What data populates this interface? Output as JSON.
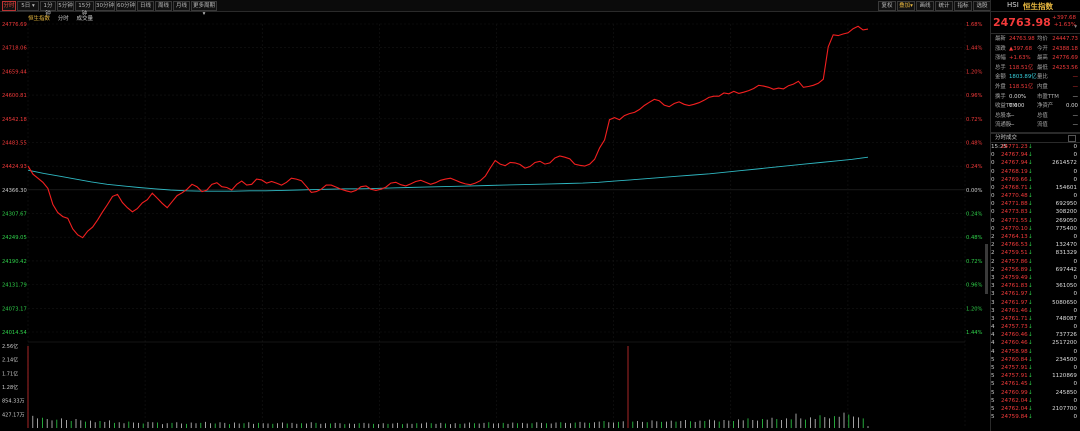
{
  "toolbar": {
    "tabs": [
      "分时",
      "5日",
      "1分钟",
      "5分钟",
      "15分钟",
      "30分钟",
      "60分钟",
      "日线",
      "周线",
      "月线",
      "更多周期"
    ],
    "active_index": 0,
    "dropdown_caret": "▾",
    "right_buttons": [
      "复权",
      "叠加",
      "画线",
      "统计",
      "指标",
      "选股"
    ]
  },
  "chart_head": {
    "name": "恒生指数",
    "mode": "分时",
    "vol_label": "成交量"
  },
  "chart_data": {
    "type": "line",
    "y_left_labels": [
      "24776.69",
      "24718.06",
      "24659.44",
      "24600.81",
      "24542.18",
      "24483.55",
      "24424.93",
      "24366.30",
      "24307.67",
      "24249.05",
      "24190.42",
      "24131.79",
      "24073.17",
      "24014.54"
    ],
    "y_right_labels": [
      "1.68%",
      "1.44%",
      "1.20%",
      "0.96%",
      "0.72%",
      "0.48%",
      "0.24%",
      "0.00%",
      "0.24%",
      "0.48%",
      "0.72%",
      "0.96%",
      "1.20%",
      "1.44%"
    ],
    "base": 24366.3,
    "ylim": [
      24014.54,
      24776.69
    ],
    "price_series": [
      24425,
      24405,
      24395,
      24385,
      24370,
      24330,
      24310,
      24300,
      24296,
      24270,
      24255,
      24248,
      24264,
      24274,
      24292,
      24312,
      24330,
      24350,
      24355,
      24335,
      24322,
      24312,
      24320,
      24334,
      24342,
      24358,
      24346,
      24333,
      24322,
      24337,
      24352,
      24359,
      24368,
      24380,
      24374,
      24362,
      24366,
      24380,
      24384,
      24374,
      24372,
      24366,
      24380,
      24388,
      24378,
      24380,
      24393,
      24391,
      24383,
      24387,
      24383,
      24378,
      24385,
      24395,
      24393,
      24389,
      24375,
      24360,
      24362,
      24368,
      24378,
      24378,
      24373,
      24368,
      24364,
      24361,
      24365,
      24374,
      24376,
      24368,
      24365,
      24368,
      24373,
      24383,
      24385,
      24379,
      24376,
      24381,
      24387,
      24390,
      24385,
      24380,
      24384,
      24390,
      24393,
      24395,
      24390,
      24385,
      24381,
      24379,
      24383,
      24389,
      24400,
      24420,
      24439,
      24430,
      24426,
      24434,
      24433,
      24429,
      24420,
      24424,
      24434,
      24437,
      24430,
      24433,
      24445,
      24450,
      24447,
      24443,
      24430,
      24427,
      24425,
      24430,
      24442,
      24470,
      24490,
      24540,
      24545,
      24540,
      24550,
      24555,
      24558,
      24565,
      24575,
      24583,
      24590,
      24587,
      24576,
      24572,
      24580,
      24584,
      24578,
      24575,
      24578,
      24582,
      24588,
      24595,
      24598,
      24598,
      24606,
      24604,
      24610,
      24605,
      24608,
      24612,
      24617,
      24625,
      24623,
      24620,
      24615,
      24618,
      24616,
      24624,
      24628,
      24635,
      24620,
      24622,
      24625,
      24630,
      24640,
      24720,
      24750,
      24748,
      24752,
      24755,
      24765,
      24771,
      24762,
      24764
    ],
    "avg_series": [
      24415,
      24407,
      24400,
      24393,
      24386,
      24380,
      24376,
      24372,
      24369,
      24366,
      24364,
      24363,
      24363,
      24363,
      24364,
      24364,
      24365,
      24366,
      24367,
      24368,
      24369,
      24369,
      24370,
      24371,
      24372,
      24373,
      24374,
      24375,
      24376,
      24377,
      24378,
      24379,
      24380,
      24381,
      24382,
      24383,
      24385,
      24388,
      24391,
      24394,
      24397,
      24400,
      24403,
      24406,
      24410,
      24414,
      24418,
      24422,
      24426,
      24430,
      24434,
      24438,
      24442,
      24447
    ],
    "volume_labels": [
      "2.56亿",
      "2.14亿",
      "1.71亿",
      "1.28亿",
      "854.33万",
      "427.17万"
    ],
    "volume": [
      2.56,
      0.38,
      0.3,
      0.32,
      0.28,
      0.24,
      0.26,
      0.3,
      0.25,
      0.22,
      0.28,
      0.24,
      0.2,
      0.23,
      0.18,
      0.22,
      0.19,
      0.24,
      0.16,
      0.18,
      0.15,
      0.2,
      0.17,
      0.16,
      0.14,
      0.19,
      0.18,
      0.17,
      0.12,
      0.15,
      0.16,
      0.18,
      0.14,
      0.13,
      0.17,
      0.15,
      0.16,
      0.19,
      0.15,
      0.14,
      0.18,
      0.16,
      0.12,
      0.17,
      0.14,
      0.15,
      0.18,
      0.13,
      0.16,
      0.15,
      0.14,
      0.13,
      0.15,
      0.17,
      0.14,
      0.16,
      0.13,
      0.15,
      0.14,
      0.18,
      0.16,
      0.13,
      0.15,
      0.14,
      0.16,
      0.15,
      0.12,
      0.14,
      0.13,
      0.15,
      0.16,
      0.14,
      0.13,
      0.12,
      0.15,
      0.13,
      0.14,
      0.16,
      0.12,
      0.14,
      0.13,
      0.15,
      0.14,
      0.17,
      0.15,
      0.13,
      0.16,
      0.14,
      0.12,
      0.15,
      0.13,
      0.14,
      0.17,
      0.15,
      0.14,
      0.16,
      0.18,
      0.14,
      0.15,
      0.16,
      0.13,
      0.17,
      0.15,
      0.16,
      0.14,
      0.15,
      0.18,
      0.16,
      0.15,
      0.14,
      0.17,
      0.18,
      0.16,
      0.15,
      0.17,
      0.19,
      0.17,
      0.16,
      0.18,
      0.2,
      0.22,
      0.18,
      0.17,
      0.19,
      0.21,
      2.56,
      0.2,
      0.22,
      0.19,
      0.18,
      0.24,
      0.21,
      0.19,
      0.2,
      0.23,
      0.2,
      0.22,
      0.25,
      0.21,
      0.19,
      0.23,
      0.22,
      0.26,
      0.24,
      0.2,
      0.25,
      0.23,
      0.22,
      0.27,
      0.24,
      0.3,
      0.25,
      0.23,
      0.28,
      0.26,
      0.32,
      0.28,
      0.25,
      0.3,
      0.27,
      0.45,
      0.3,
      0.26,
      0.33,
      0.28,
      0.4,
      0.34,
      0.3,
      0.37,
      0.35,
      0.48,
      0.42,
      0.36,
      0.33,
      0.3,
      0.06
    ]
  },
  "panel": {
    "code": "HSI",
    "name": "恒生指数",
    "price": "24763.98",
    "change": "+397.68",
    "change_pct": "+1.63%",
    "stats": [
      {
        "l": "最新",
        "v": "24763.98",
        "r": "均价",
        "rv": "24447.73"
      },
      {
        "l": "涨跌",
        "v": "▲397.68",
        "r": "今开",
        "rv": "24388.18"
      },
      {
        "l": "涨幅",
        "v": "+1.63%",
        "r": "最高",
        "rv": "24776.69"
      },
      {
        "l": "总手",
        "v": "118.51亿",
        "r": "最低",
        "rv": "24253.56"
      },
      {
        "l": "金额",
        "v": "1803.89亿",
        "r": "量比",
        "rv": "—"
      },
      {
        "l": "外盘",
        "v": "118.51亿",
        "r": "内盘",
        "rv": "—"
      },
      {
        "l": "换手",
        "v": "0.00%",
        "r": "市盈TTM",
        "rv": "—"
      },
      {
        "l": "收益TTM",
        "v": "0.000",
        "r": "净资产",
        "rv": "0.00"
      },
      {
        "l": "总股本",
        "v": "—",
        "r": "总值",
        "rv": "—"
      },
      {
        "l": "流通股",
        "v": "—",
        "r": "流值",
        "rv": "—"
      }
    ],
    "ticks_title": "分时成交",
    "ticks": [
      {
        "t": "15:25",
        "p": "24771.23",
        "v": "0"
      },
      {
        "t": "0",
        "p": "24767.94",
        "v": "0"
      },
      {
        "t": "0",
        "p": "24767.94",
        "v": "2614572"
      },
      {
        "t": "0",
        "p": "24768.19",
        "v": "0"
      },
      {
        "t": "0",
        "p": "24769.66",
        "v": "0"
      },
      {
        "t": "0",
        "p": "24768.71",
        "v": "154601"
      },
      {
        "t": "0",
        "p": "24770.48",
        "v": "0"
      },
      {
        "t": "0",
        "p": "24771.88",
        "v": "692950"
      },
      {
        "t": "0",
        "p": "24773.83",
        "v": "308200"
      },
      {
        "t": "0",
        "p": "24771.55",
        "v": "269050"
      },
      {
        "t": "0",
        "p": "24770.10",
        "v": "775400"
      },
      {
        "t": "2",
        "p": "24764.13",
        "v": "0"
      },
      {
        "t": "2",
        "p": "24766.53",
        "v": "132470"
      },
      {
        "t": "2",
        "p": "24759.51",
        "v": "831329"
      },
      {
        "t": "2",
        "p": "24757.86",
        "v": "0"
      },
      {
        "t": "2",
        "p": "24756.89",
        "v": "697442"
      },
      {
        "t": "3",
        "p": "24759.49",
        "v": "0"
      },
      {
        "t": "3",
        "p": "24761.83",
        "v": "361050"
      },
      {
        "t": "3",
        "p": "24761.97",
        "v": "0"
      },
      {
        "t": "3",
        "p": "24761.97",
        "v": "5080650"
      },
      {
        "t": "3",
        "p": "24761.46",
        "v": "0"
      },
      {
        "t": "3",
        "p": "24761.71",
        "v": "748087"
      },
      {
        "t": "4",
        "p": "24757.73",
        "v": "0"
      },
      {
        "t": "4",
        "p": "24760.46",
        "v": "737726"
      },
      {
        "t": "4",
        "p": "24760.46",
        "v": "2517200"
      },
      {
        "t": "4",
        "p": "24758.98",
        "v": "0"
      },
      {
        "t": "5",
        "p": "24760.84",
        "v": "234500"
      },
      {
        "t": "5",
        "p": "24757.91",
        "v": "0"
      },
      {
        "t": "5",
        "p": "24757.91",
        "v": "1120869"
      },
      {
        "t": "5",
        "p": "24761.45",
        "v": "0"
      },
      {
        "t": "5",
        "p": "24760.99",
        "v": "245850"
      },
      {
        "t": "5",
        "p": "24762.04",
        "v": "0"
      },
      {
        "t": "5",
        "p": "24762.04",
        "v": "2107700"
      },
      {
        "t": "5",
        "p": "24759.84",
        "v": "0"
      }
    ]
  }
}
